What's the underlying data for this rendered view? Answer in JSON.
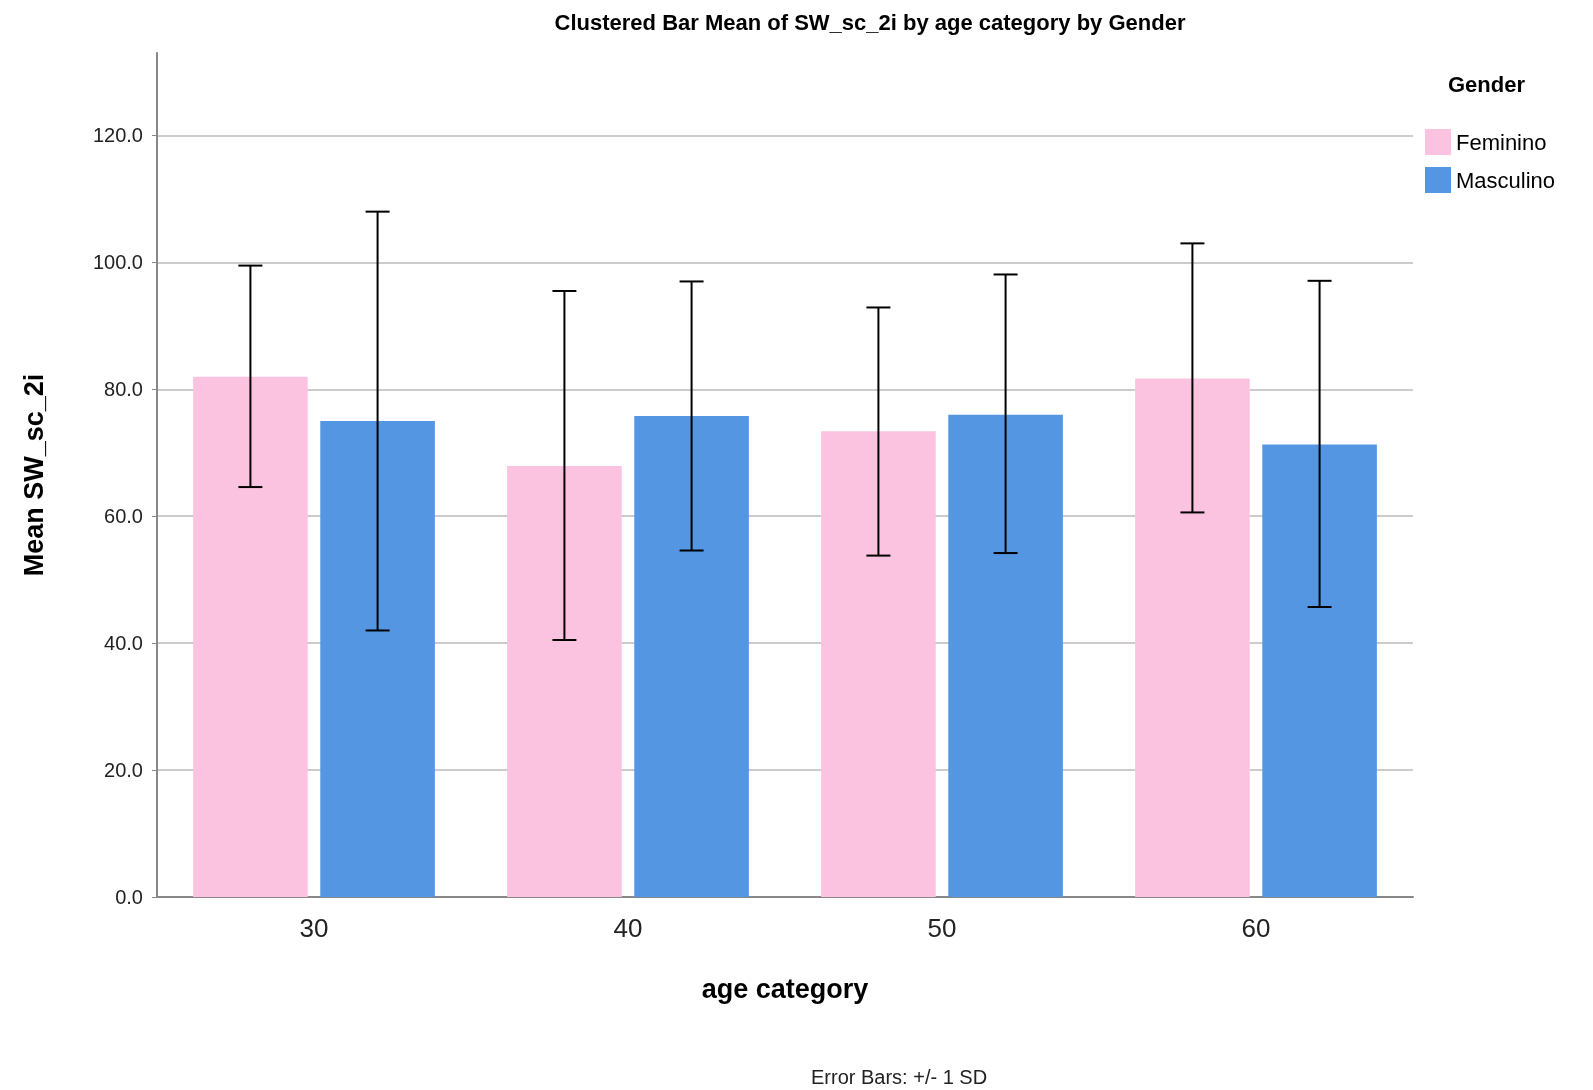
{
  "chart_data": {
    "type": "bar",
    "title": "Clustered Bar Mean of SW_sc_2i by age category by Gender",
    "xlabel": "age category",
    "ylabel": "Mean SW_sc_2i",
    "legend_title": "Gender",
    "categories": [
      "30",
      "40",
      "50",
      "60"
    ],
    "series": [
      {
        "name": "Feminino",
        "color": "#fbc3e0",
        "values": [
          82.0,
          67.9,
          73.4,
          81.7
        ],
        "errors": [
          [
            64.6,
            99.5
          ],
          [
            40.5,
            95.5
          ],
          [
            53.8,
            92.9
          ],
          [
            60.6,
            103.0
          ]
        ]
      },
      {
        "name": "Masculino",
        "color": "#5596e3",
        "values": [
          75.0,
          75.8,
          76.0,
          71.3
        ],
        "errors": [
          [
            42.0,
            108.0
          ],
          [
            54.6,
            97.0
          ],
          [
            54.2,
            98.1
          ],
          [
            45.7,
            97.1
          ]
        ]
      }
    ],
    "ylim": [
      0,
      133
    ],
    "yticks": [
      {
        "value": 0,
        "label": "0.0"
      },
      {
        "value": 20,
        "label": "20.0"
      },
      {
        "value": 40,
        "label": "40.0"
      },
      {
        "value": 60,
        "label": "60.0"
      },
      {
        "value": 80,
        "label": "80.0"
      },
      {
        "value": 100,
        "label": "100.0"
      },
      {
        "value": 120,
        "label": "120.0"
      }
    ],
    "grid": "y",
    "legend": "top right",
    "annotations": [
      "Error Bars: +/- 1 SD"
    ]
  }
}
